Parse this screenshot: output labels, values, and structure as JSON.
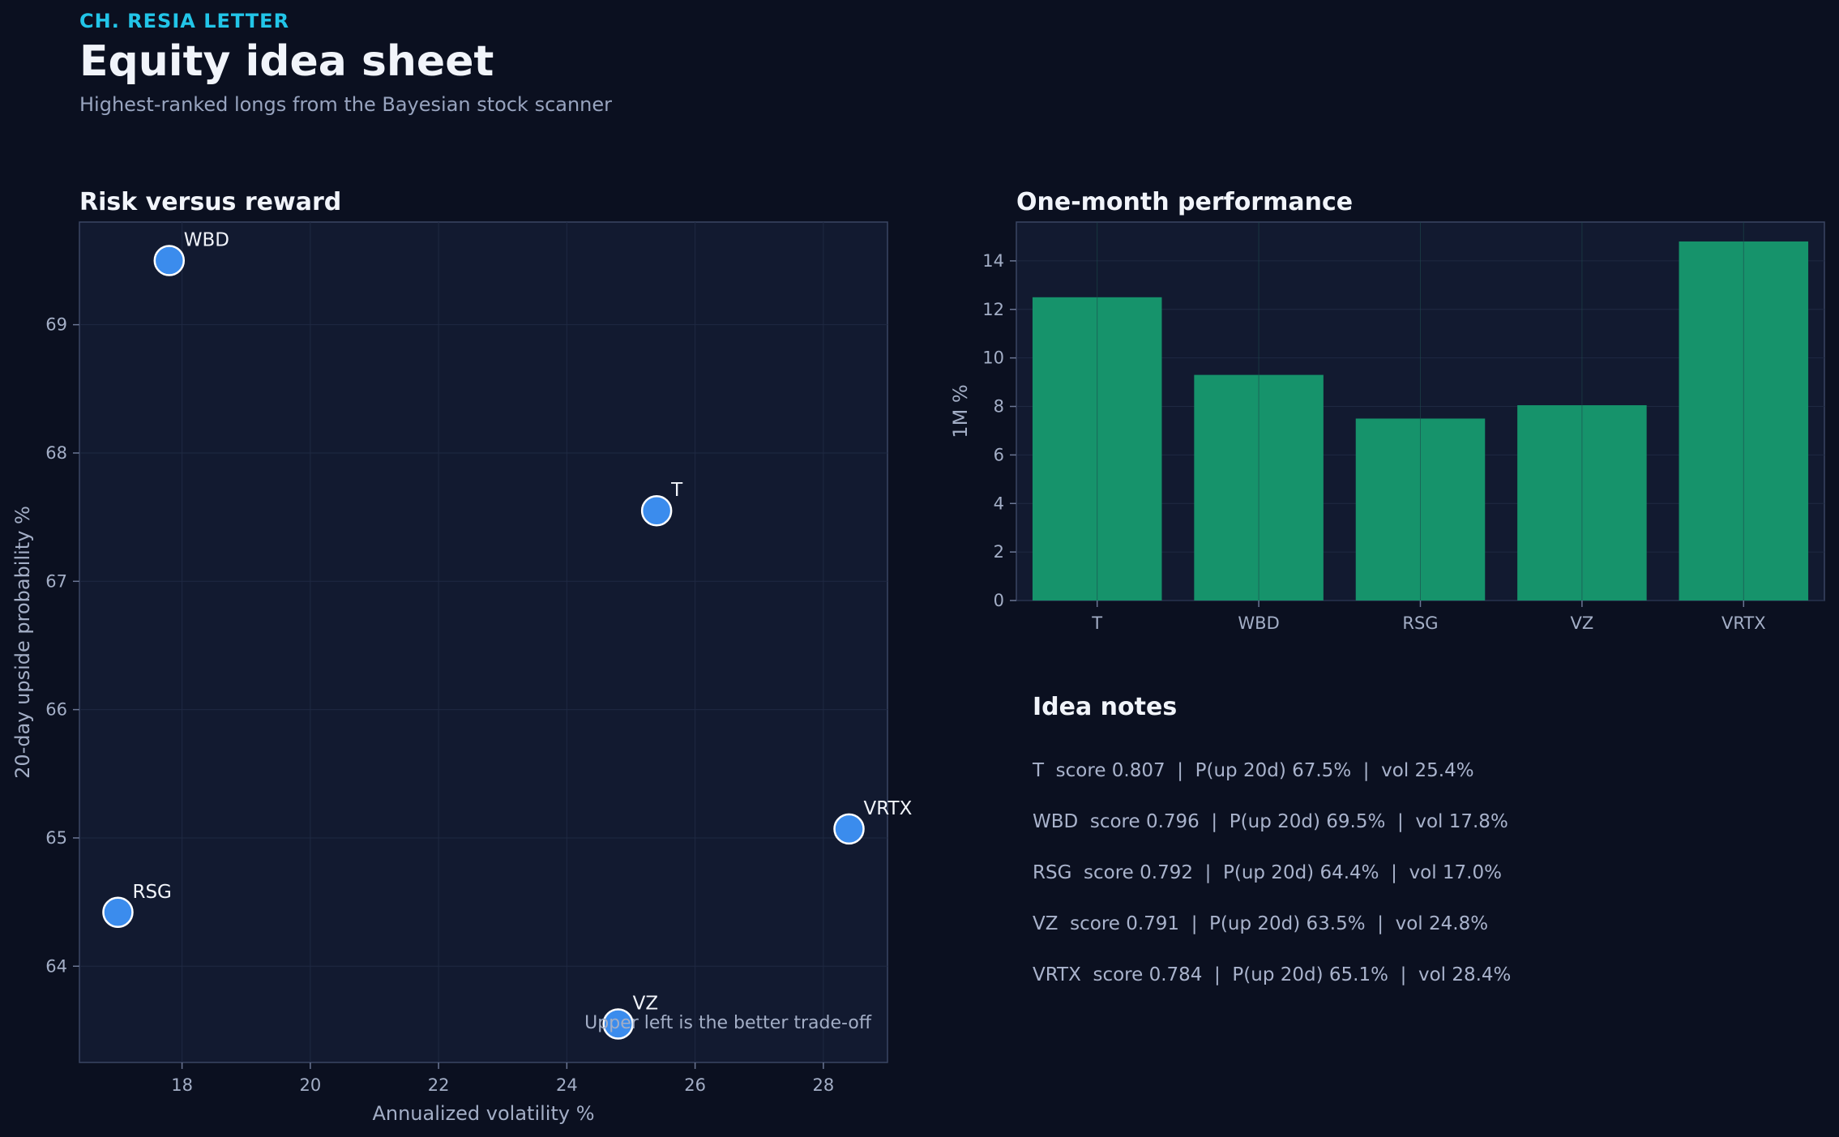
{
  "header": {
    "brand": "CH. RESIA LETTER",
    "title": "Equity idea sheet",
    "subtitle": "Highest-ranked longs from the Bayesian stock scanner"
  },
  "colors": {
    "background": "#0b1020",
    "panel": "#121a30",
    "grid": "#1f2942",
    "point_fill": "#3b8ced",
    "bar_fill": "#16936b",
    "accent": "#22c5e8"
  },
  "chart_data": [
    {
      "type": "scatter",
      "title": "Risk versus reward",
      "xlabel": "Annualized volatility %",
      "ylabel": "20-day upside probability %",
      "xlim": [
        16.4,
        29.0
      ],
      "ylim": [
        63.25,
        69.8
      ],
      "xticks": [
        18,
        20,
        22,
        24,
        26,
        28
      ],
      "yticks": [
        64,
        65,
        66,
        67,
        68,
        69
      ],
      "grid": true,
      "points": [
        {
          "label": "T",
          "x": 25.4,
          "y": 67.55
        },
        {
          "label": "WBD",
          "x": 17.8,
          "y": 69.5
        },
        {
          "label": "RSG",
          "x": 17.0,
          "y": 64.42
        },
        {
          "label": "VZ",
          "x": 24.8,
          "y": 63.55
        },
        {
          "label": "VRTX",
          "x": 28.4,
          "y": 65.07
        }
      ],
      "annotation": "Upper left is the better trade-off"
    },
    {
      "type": "bar",
      "title": "One-month performance",
      "xlabel": "",
      "ylabel": "1M %",
      "categories": [
        "T",
        "WBD",
        "RSG",
        "VZ",
        "VRTX"
      ],
      "values": [
        12.5,
        9.3,
        7.5,
        8.05,
        14.8
      ],
      "ylim": [
        0,
        15.6
      ],
      "yticks": [
        0,
        2,
        4,
        6,
        8,
        10,
        12,
        14
      ],
      "grid": true
    }
  ],
  "notes": {
    "title": "Idea notes",
    "items": [
      "T  score 0.807  |  P(up 20d) 67.5%  |  vol 25.4%",
      "WBD  score 0.796  |  P(up 20d) 69.5%  |  vol 17.8%",
      "RSG  score 0.792  |  P(up 20d) 64.4%  |  vol 17.0%",
      "VZ  score 0.791  |  P(up 20d) 63.5%  |  vol 24.8%",
      "VRTX  score 0.784  |  P(up 20d) 65.1%  |  vol 28.4%"
    ]
  }
}
